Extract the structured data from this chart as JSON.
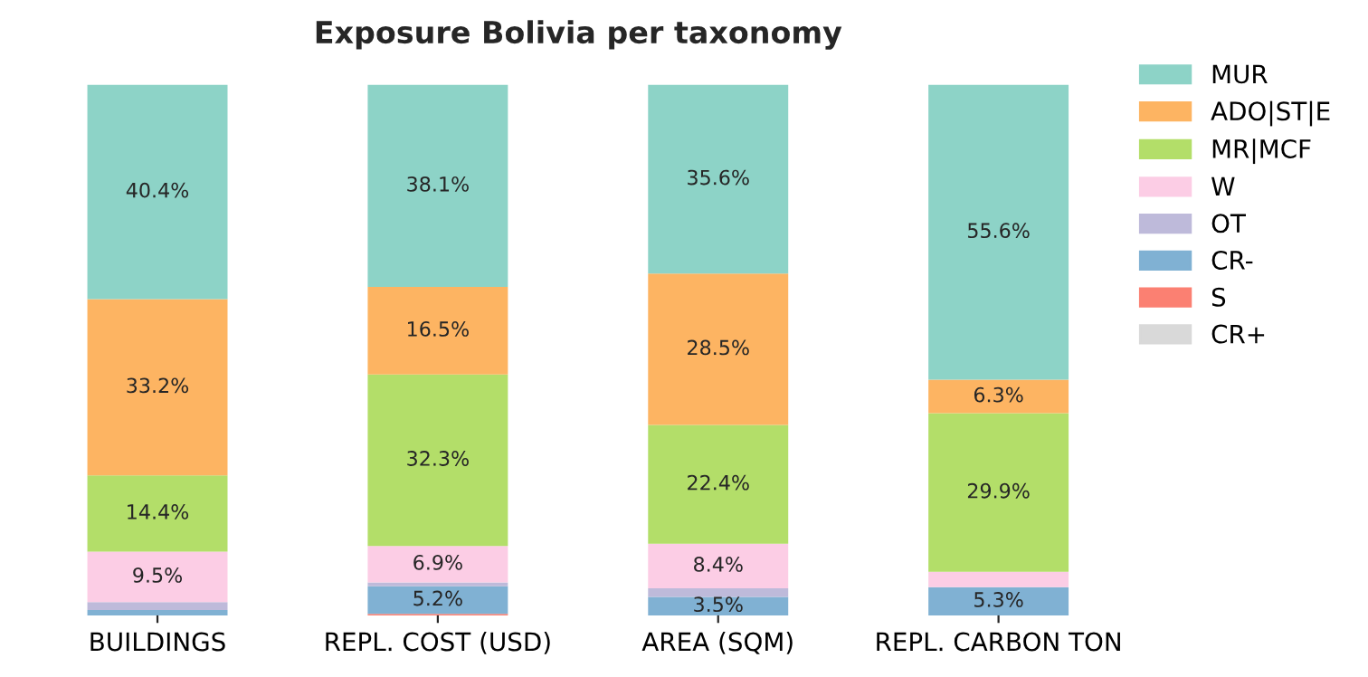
{
  "chart_data": {
    "type": "bar",
    "title": "Exposure Bolivia per taxonomy",
    "stacked": true,
    "legend": "top right",
    "grid": false,
    "categories": [
      "BUILDINGS",
      "REPL. COST (USD)",
      "AREA (SQM)",
      "REPL. CARBON TON"
    ],
    "series": [
      {
        "name": "CR+",
        "color": "#d9d9d9",
        "values": [
          0,
          0,
          0,
          0
        ],
        "value_labels": [
          null,
          null,
          null,
          null
        ]
      },
      {
        "name": "S",
        "color": "#fb8072",
        "values": [
          0,
          0.3,
          0,
          0
        ],
        "value_labels": [
          null,
          null,
          null,
          null
        ]
      },
      {
        "name": "CR-",
        "color": "#80b1d3",
        "values": [
          1.0,
          5.2,
          3.5,
          5.3
        ],
        "value_labels": [
          null,
          "5.2%",
          "3.5%",
          "5.3%"
        ]
      },
      {
        "name": "OT",
        "color": "#bebada",
        "values": [
          1.5,
          0.7,
          1.6,
          0
        ],
        "value_labels": [
          null,
          null,
          null,
          null
        ]
      },
      {
        "name": "W",
        "color": "#fccde5",
        "values": [
          9.5,
          6.9,
          8.4,
          2.9
        ],
        "value_labels": [
          "9.5%",
          "6.9%",
          "8.4%",
          null
        ]
      },
      {
        "name": "MR|MCF",
        "color": "#b3de69",
        "values": [
          14.4,
          32.3,
          22.4,
          29.9
        ],
        "value_labels": [
          "14.4%",
          "32.3%",
          "22.4%",
          "29.9%"
        ]
      },
      {
        "name": "ADO|ST|E",
        "color": "#fdb462",
        "values": [
          33.2,
          16.5,
          28.5,
          6.3
        ],
        "value_labels": [
          "33.2%",
          "16.5%",
          "28.5%",
          "6.3%"
        ]
      },
      {
        "name": "MUR",
        "color": "#8dd3c7",
        "values": [
          40.4,
          38.1,
          35.6,
          55.6
        ],
        "value_labels": [
          "40.4%",
          "38.1%",
          "35.6%",
          "55.6%"
        ]
      }
    ]
  }
}
